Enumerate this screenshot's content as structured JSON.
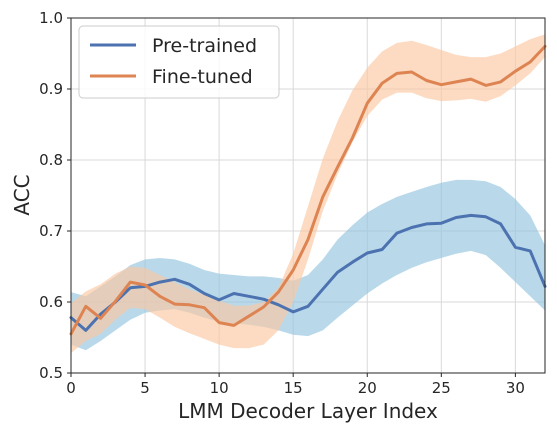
{
  "chart_data": {
    "type": "line",
    "xlabel": "LMM Decoder Layer Index",
    "ylabel": "ACC",
    "xlim": [
      0,
      32
    ],
    "ylim": [
      0.5,
      1.0
    ],
    "x_ticks": [
      0,
      5,
      10,
      15,
      20,
      25,
      30
    ],
    "y_ticks": [
      0.5,
      0.6,
      0.7,
      0.8,
      0.9,
      1.0
    ],
    "grid": true,
    "legend_position": "top-left",
    "x": [
      0,
      1,
      2,
      3,
      4,
      5,
      6,
      7,
      8,
      9,
      10,
      11,
      12,
      13,
      14,
      15,
      16,
      17,
      18,
      19,
      20,
      21,
      22,
      23,
      24,
      25,
      26,
      27,
      28,
      29,
      30,
      31,
      32
    ],
    "series": [
      {
        "name": "Pre-trained",
        "color": "#4c72b0",
        "band_color": "#94c4e1",
        "values": [
          0.578,
          0.56,
          0.583,
          0.6,
          0.62,
          0.622,
          0.628,
          0.632,
          0.625,
          0.612,
          0.603,
          0.612,
          0.608,
          0.604,
          0.596,
          0.586,
          0.594,
          0.618,
          0.642,
          0.656,
          0.669,
          0.674,
          0.697,
          0.705,
          0.71,
          0.711,
          0.719,
          0.722,
          0.72,
          0.71,
          0.677,
          0.672,
          0.622
        ],
        "lower": [
          0.54,
          0.532,
          0.545,
          0.56,
          0.575,
          0.585,
          0.588,
          0.59,
          0.585,
          0.578,
          0.572,
          0.57,
          0.568,
          0.565,
          0.56,
          0.554,
          0.552,
          0.56,
          0.578,
          0.595,
          0.612,
          0.626,
          0.638,
          0.648,
          0.656,
          0.662,
          0.668,
          0.672,
          0.666,
          0.648,
          0.628,
          0.608,
          0.588
        ],
        "upper": [
          0.614,
          0.608,
          0.622,
          0.636,
          0.652,
          0.66,
          0.662,
          0.66,
          0.654,
          0.645,
          0.64,
          0.638,
          0.636,
          0.636,
          0.634,
          0.63,
          0.638,
          0.66,
          0.688,
          0.708,
          0.726,
          0.738,
          0.748,
          0.755,
          0.762,
          0.768,
          0.772,
          0.772,
          0.77,
          0.762,
          0.745,
          0.722,
          0.68
        ]
      },
      {
        "name": "Fine-tuned",
        "color": "#dd8452",
        "band_color": "#fbc8a2",
        "values": [
          0.555,
          0.594,
          0.577,
          0.601,
          0.628,
          0.624,
          0.608,
          0.597,
          0.596,
          0.592,
          0.571,
          0.567,
          0.58,
          0.593,
          0.614,
          0.645,
          0.688,
          0.748,
          0.79,
          0.831,
          0.88,
          0.908,
          0.922,
          0.924,
          0.912,
          0.906,
          0.91,
          0.914,
          0.905,
          0.91,
          0.925,
          0.938,
          0.96
        ],
        "lower": [
          0.528,
          0.545,
          0.555,
          0.575,
          0.592,
          0.59,
          0.578,
          0.565,
          0.556,
          0.548,
          0.54,
          0.535,
          0.535,
          0.54,
          0.56,
          0.6,
          0.66,
          0.728,
          0.78,
          0.825,
          0.862,
          0.885,
          0.895,
          0.895,
          0.887,
          0.883,
          0.884,
          0.886,
          0.882,
          0.89,
          0.905,
          0.922,
          0.945
        ],
        "upper": [
          0.598,
          0.615,
          0.625,
          0.64,
          0.65,
          0.648,
          0.638,
          0.628,
          0.618,
          0.61,
          0.602,
          0.595,
          0.595,
          0.6,
          0.62,
          0.668,
          0.735,
          0.802,
          0.855,
          0.898,
          0.93,
          0.953,
          0.965,
          0.968,
          0.962,
          0.955,
          0.948,
          0.945,
          0.945,
          0.95,
          0.96,
          0.97,
          0.977
        ]
      }
    ]
  }
}
